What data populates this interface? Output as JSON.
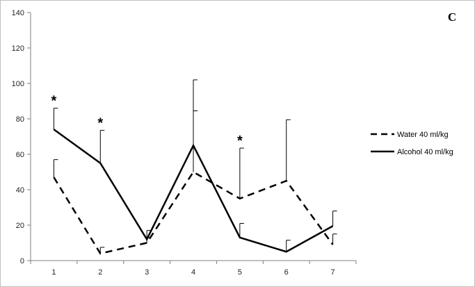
{
  "chart_data": {
    "type": "line",
    "panel_label": "C",
    "title": "",
    "xlabel": "",
    "ylabel": "",
    "x": [
      1,
      2,
      3,
      4,
      5,
      6,
      7
    ],
    "xlim": [
      0.5,
      7.5
    ],
    "ylim": [
      0,
      140
    ],
    "yticks": [
      0,
      20,
      40,
      60,
      80,
      100,
      120,
      140
    ],
    "grid": false,
    "legend_position": "right",
    "series": [
      {
        "name": "Water 40 ml/kg",
        "line_style": "dashed",
        "color": "#000000",
        "values": [
          47,
          4,
          10,
          50,
          35,
          45,
          9
        ],
        "error_upper": [
          57,
          7.5,
          17,
          84.5,
          63.5,
          79.5,
          15
        ]
      },
      {
        "name": "Alcohol 40 ml/kg",
        "line_style": "solid",
        "color": "#000000",
        "values": [
          74,
          55,
          12,
          65,
          13,
          5,
          19.5
        ],
        "error_upper": [
          86,
          73.5,
          13,
          102,
          21,
          11.5,
          28
        ]
      }
    ],
    "annotations": [
      {
        "text": "*",
        "x": 1,
        "y": 86
      },
      {
        "text": "*",
        "x": 2,
        "y": 73.5
      },
      {
        "text": "*",
        "x": 5,
        "y": 63.5
      }
    ]
  }
}
